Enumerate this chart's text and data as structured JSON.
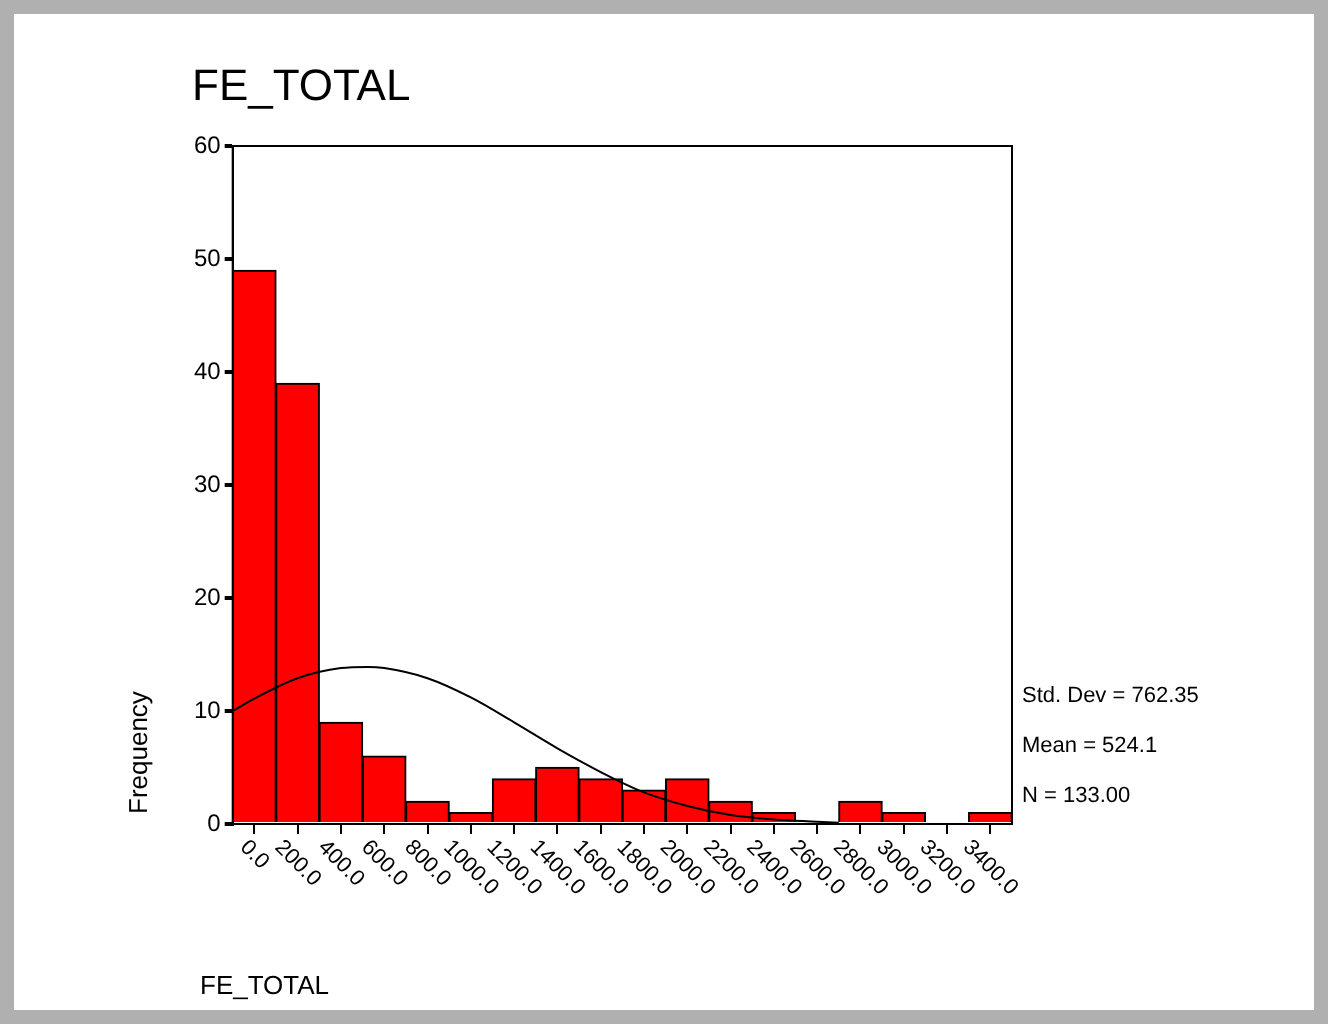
{
  "chart_data": {
    "type": "histogram",
    "title": "FE_TOTAL",
    "xlabel": "FE_TOTAL",
    "ylabel": "Frequency",
    "bins": [
      -100,
      100,
      300,
      500,
      700,
      900,
      1100,
      1300,
      1500,
      1700,
      1900,
      2100,
      2300,
      2500,
      2700,
      2900,
      3100,
      3300,
      3500
    ],
    "series": [
      {
        "color": "#ff0000",
        "values": [
          49,
          39,
          9,
          6,
          2,
          1,
          4,
          5,
          4,
          3,
          4,
          2,
          1,
          0,
          2,
          1,
          0,
          1
        ]
      },
      {
        "type": "line",
        "color": "#000000",
        "marker": "none",
        "x": [
          -100,
          0,
          200,
          400,
          524,
          600,
          800,
          1000,
          1200,
          1400,
          1600,
          1800,
          2000,
          2200,
          2400,
          2600,
          2700
        ],
        "values": [
          10,
          11.1,
          12.9,
          13.8,
          13.9,
          13.8,
          12.9,
          11.2,
          9.0,
          6.7,
          4.6,
          2.8,
          1.6,
          0.8,
          0.4,
          0.2,
          0.1
        ]
      }
    ],
    "xlim": [
      -100,
      3500
    ],
    "xticks": [
      {
        "value": 0,
        "label": "0.0"
      },
      {
        "value": 200,
        "label": "200.0"
      },
      {
        "value": 400,
        "label": "400.0"
      },
      {
        "value": 600,
        "label": "600.0"
      },
      {
        "value": 800,
        "label": "800.0"
      },
      {
        "value": 1000,
        "label": "1000.0"
      },
      {
        "value": 1200,
        "label": "1200.0"
      },
      {
        "value": 1400,
        "label": "1400.0"
      },
      {
        "value": 1600,
        "label": "1600.0"
      },
      {
        "value": 1800,
        "label": "1800.0"
      },
      {
        "value": 2000,
        "label": "2000.0"
      },
      {
        "value": 2200,
        "label": "2200.0"
      },
      {
        "value": 2400,
        "label": "2400.0"
      },
      {
        "value": 2600,
        "label": "2600.0"
      },
      {
        "value": 2800,
        "label": "2800.0"
      },
      {
        "value": 3000,
        "label": "3000.0"
      },
      {
        "value": 3200,
        "label": "3200.0"
      },
      {
        "value": 3400,
        "label": "3400.0"
      }
    ],
    "ylim": [
      0,
      60
    ],
    "yticks": [
      0,
      10,
      20,
      30,
      40,
      50,
      60
    ],
    "annotations": [
      "Std. Dev = 762.35",
      "Mean = 524.1",
      "N = 133.00"
    ],
    "grid": false,
    "legend": false
  }
}
